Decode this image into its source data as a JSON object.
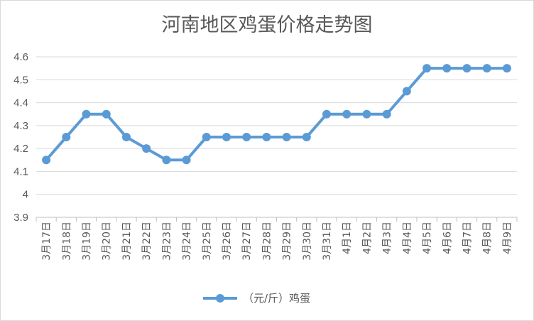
{
  "chart_data": {
    "type": "line",
    "title": "河南地区鸡蛋价格走势图",
    "categories": [
      "3月17日",
      "3月18日",
      "3月19日",
      "3月20日",
      "3月21日",
      "3月22日",
      "3月23日",
      "3月24日",
      "3月25日",
      "3月26日",
      "3月27日",
      "3月28日",
      "3月29日",
      "3月30日",
      "3月31日",
      "4月1日",
      "4月2日",
      "4月3日",
      "4月4日",
      "4月5日",
      "4月6日",
      "4月7日",
      "4月8日",
      "4月9日"
    ],
    "series": [
      {
        "name": "（元/斤）鸡蛋",
        "values": [
          4.15,
          4.25,
          4.35,
          4.35,
          4.25,
          4.2,
          4.15,
          4.15,
          4.25,
          4.25,
          4.25,
          4.25,
          4.25,
          4.25,
          4.35,
          4.35,
          4.35,
          4.35,
          4.45,
          4.55,
          4.55,
          4.55,
          4.55,
          4.55
        ]
      }
    ],
    "ylim": [
      3.9,
      4.6
    ],
    "yticks": [
      "3.9",
      "4",
      "4.1",
      "4.2",
      "4.3",
      "4.4",
      "4.5",
      "4.6"
    ],
    "xlabel": "",
    "ylabel": "",
    "grid": true,
    "legend_position": "bottom",
    "color": "#5b9bd5"
  }
}
